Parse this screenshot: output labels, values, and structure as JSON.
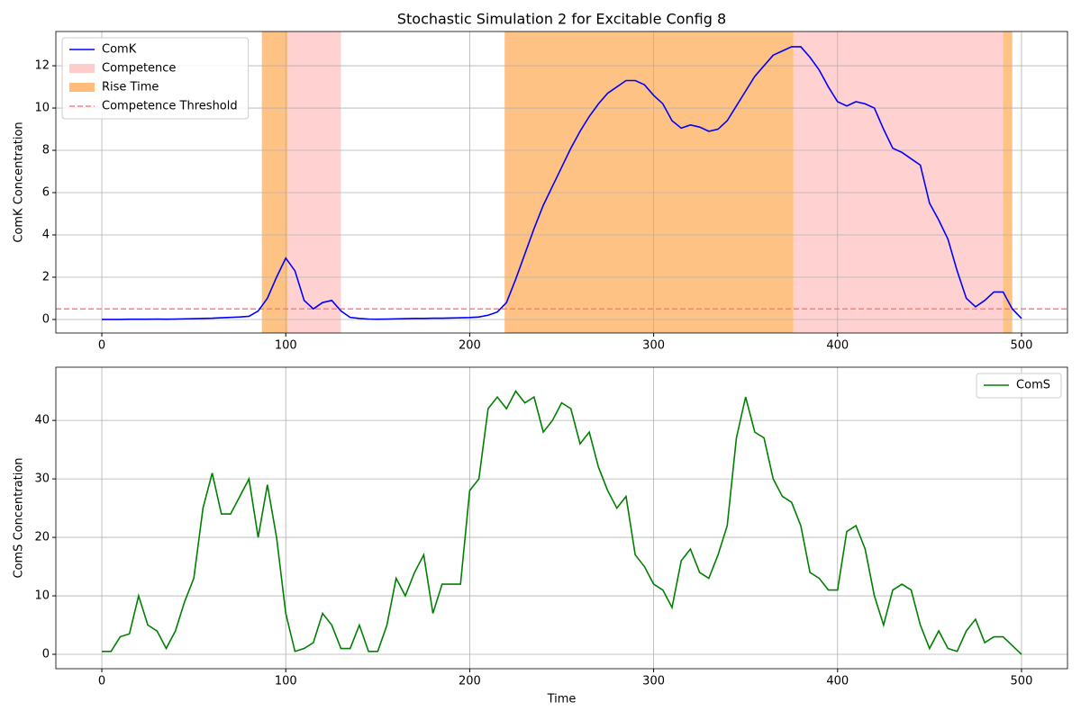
{
  "chart_data": [
    {
      "type": "line",
      "title": "Stochastic Simulation 2 for Excitable Config 8",
      "ylabel": "ComK Concentration",
      "x": [
        0,
        5,
        10,
        15,
        20,
        25,
        30,
        35,
        40,
        45,
        50,
        55,
        60,
        65,
        70,
        75,
        80,
        85,
        90,
        95,
        100,
        105,
        110,
        115,
        120,
        125,
        130,
        135,
        140,
        145,
        150,
        155,
        160,
        165,
        170,
        175,
        180,
        185,
        190,
        195,
        200,
        205,
        210,
        215,
        220,
        225,
        230,
        235,
        240,
        245,
        250,
        255,
        260,
        265,
        270,
        275,
        280,
        285,
        290,
        295,
        300,
        305,
        310,
        315,
        320,
        325,
        330,
        335,
        340,
        345,
        350,
        355,
        360,
        365,
        370,
        375,
        380,
        385,
        390,
        395,
        400,
        405,
        410,
        415,
        420,
        425,
        430,
        435,
        440,
        445,
        450,
        455,
        460,
        465,
        470,
        475,
        480,
        485,
        490,
        495,
        500
      ],
      "series": [
        {
          "name": "ComK",
          "color": "#0000ff",
          "values": [
            0,
            0,
            0,
            0.01,
            0.01,
            0.01,
            0.02,
            0.01,
            0.02,
            0.03,
            0.04,
            0.05,
            0.06,
            0.08,
            0.1,
            0.12,
            0.15,
            0.4,
            1.0,
            2.0,
            2.9,
            2.3,
            0.9,
            0.5,
            0.8,
            0.9,
            0.4,
            0.1,
            0.05,
            0.02,
            0.01,
            0.02,
            0.03,
            0.04,
            0.05,
            0.05,
            0.06,
            0.06,
            0.07,
            0.08,
            0.09,
            0.12,
            0.2,
            0.35,
            0.8,
            1.9,
            3.1,
            4.3,
            5.4,
            6.3,
            7.2,
            8.1,
            8.9,
            9.6,
            10.2,
            10.7,
            11.0,
            11.3,
            11.3,
            11.1,
            10.6,
            10.2,
            9.4,
            9.05,
            9.2,
            9.1,
            8.9,
            9.0,
            9.4,
            10.1,
            10.8,
            11.5,
            12.0,
            12.5,
            12.7,
            12.9,
            12.9,
            12.4,
            11.8,
            11.0,
            10.3,
            10.1,
            10.3,
            10.2,
            10.0,
            9.0,
            8.1,
            7.9,
            7.6,
            7.3,
            5.5,
            4.7,
            3.8,
            2.3,
            1.0,
            0.6,
            0.9,
            1.3,
            1.3,
            0.5,
            0.05
          ]
        }
      ],
      "spans": [
        {
          "name": "Competence",
          "color": "#ffcccc",
          "ranges": [
            [
              101,
              130
            ],
            [
              376,
              490
            ]
          ]
        },
        {
          "name": "Rise Time",
          "color": "#ffbb78",
          "ranges": [
            [
              87,
              101
            ],
            [
              219,
              376
            ],
            [
              490,
              495
            ]
          ]
        }
      ],
      "hlines": [
        {
          "name": "Competence Threshold",
          "color": "#ff7f7f",
          "value": 0.5
        }
      ],
      "xlim": [
        -25,
        525
      ],
      "ylim": [
        -0.64,
        13.62
      ],
      "xticks": [
        0,
        100,
        200,
        300,
        400,
        500
      ],
      "yticks": [
        0,
        2,
        4,
        6,
        8,
        10,
        12
      ],
      "grid": true,
      "legend": "upper left"
    },
    {
      "type": "line",
      "xlabel": "Time",
      "ylabel": "ComS Concentration",
      "x": [
        0,
        5,
        10,
        15,
        20,
        25,
        30,
        35,
        40,
        45,
        50,
        55,
        60,
        65,
        70,
        75,
        80,
        85,
        90,
        95,
        100,
        105,
        110,
        115,
        120,
        125,
        130,
        135,
        140,
        145,
        150,
        155,
        160,
        165,
        170,
        175,
        180,
        185,
        190,
        195,
        200,
        205,
        210,
        215,
        220,
        225,
        230,
        235,
        240,
        245,
        250,
        255,
        260,
        265,
        270,
        275,
        280,
        285,
        290,
        295,
        300,
        305,
        310,
        315,
        320,
        325,
        330,
        335,
        340,
        345,
        350,
        355,
        360,
        365,
        370,
        375,
        380,
        385,
        390,
        395,
        400,
        405,
        410,
        415,
        420,
        425,
        430,
        435,
        440,
        445,
        450,
        455,
        460,
        465,
        470,
        475,
        480,
        485,
        490,
        495,
        500
      ],
      "series": [
        {
          "name": "ComS",
          "color": "#008000",
          "values": [
            0.5,
            0.5,
            3,
            3.5,
            10,
            5,
            4,
            1,
            4,
            9,
            13,
            25,
            31,
            24,
            24,
            27,
            30,
            20,
            29,
            20,
            7,
            0.5,
            1,
            2,
            7,
            5,
            1,
            1,
            5,
            0.5,
            0.5,
            5,
            13,
            10,
            14,
            17,
            7,
            12,
            12,
            12,
            28,
            30,
            42,
            44,
            42,
            45,
            43,
            44,
            38,
            40,
            43,
            42,
            36,
            38,
            32,
            28,
            25,
            27,
            17,
            15,
            12,
            11,
            8,
            16,
            18,
            14,
            13,
            17,
            22,
            37,
            44,
            38,
            37,
            30,
            27,
            26,
            22,
            14,
            13,
            11,
            11,
            21,
            22,
            18,
            10,
            5,
            11,
            12,
            11,
            5,
            1,
            4,
            1,
            0.5,
            4,
            6,
            2,
            3,
            3,
            1.5,
            0
          ]
        }
      ],
      "xlim": [
        -25,
        525
      ],
      "ylim": [
        -2.46,
        49.1
      ],
      "xticks": [
        0,
        100,
        200,
        300,
        400,
        500
      ],
      "yticks": [
        0,
        10,
        20,
        30,
        40
      ],
      "grid": true,
      "legend": "upper right"
    }
  ]
}
